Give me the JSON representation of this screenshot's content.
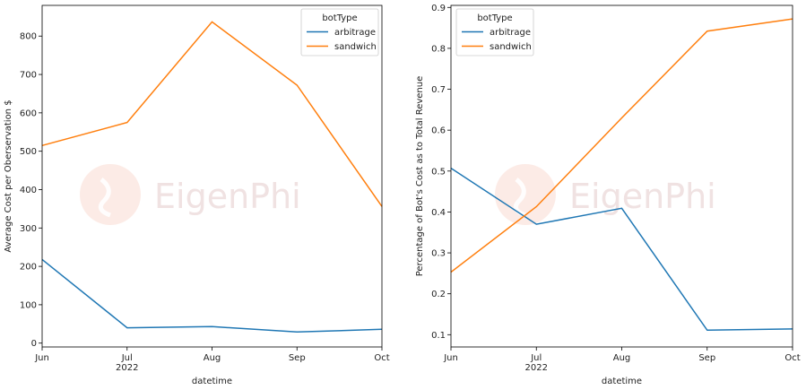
{
  "colors": {
    "arbitrage": "#1f77b4",
    "sandwich": "#ff7f0e",
    "axis": "#000000",
    "watermark": "#f6d4cc"
  },
  "watermark": {
    "text": "EigenPhi"
  },
  "chart_data": [
    {
      "type": "line",
      "x": [
        "Jun",
        "Jul",
        "Aug",
        "Sep",
        "Oct"
      ],
      "x_year_label": "2022",
      "xlabel": "datetime",
      "ylabel": "Average Cost per Oberservation $",
      "ylim": [
        -10,
        880
      ],
      "yticks": [
        0,
        100,
        200,
        300,
        400,
        500,
        600,
        700,
        800
      ],
      "ytick_labels": [
        "0",
        "100",
        "200",
        "300",
        "400",
        "500",
        "600",
        "700",
        "800"
      ],
      "legend": {
        "title": "botType",
        "placement": "top-right"
      },
      "series": [
        {
          "name": "arbitrage",
          "values": [
            218,
            40,
            43,
            29,
            36
          ]
        },
        {
          "name": "sandwich",
          "values": [
            515,
            575,
            837,
            672,
            356
          ]
        }
      ]
    },
    {
      "type": "line",
      "x": [
        "Jun",
        "Jul",
        "Aug",
        "Sep",
        "Oct"
      ],
      "x_year_label": "2022",
      "xlabel": "datetime",
      "ylabel": "Percentage of Bot's Cost as to Total Revenue",
      "ylim": [
        0.07,
        0.905
      ],
      "yticks": [
        0.1,
        0.2,
        0.3,
        0.4,
        0.5,
        0.6,
        0.7,
        0.8,
        0.9
      ],
      "ytick_labels": [
        "0.1",
        "0.2",
        "0.3",
        "0.4",
        "0.5",
        "0.6",
        "0.7",
        "0.8",
        "0.9"
      ],
      "legend": {
        "title": "botType",
        "placement": "top-left"
      },
      "series": [
        {
          "name": "arbitrage",
          "values": [
            0.507,
            0.37,
            0.409,
            0.111,
            0.114
          ]
        },
        {
          "name": "sandwich",
          "values": [
            0.253,
            0.413,
            0.63,
            0.842,
            0.872
          ]
        }
      ]
    }
  ]
}
